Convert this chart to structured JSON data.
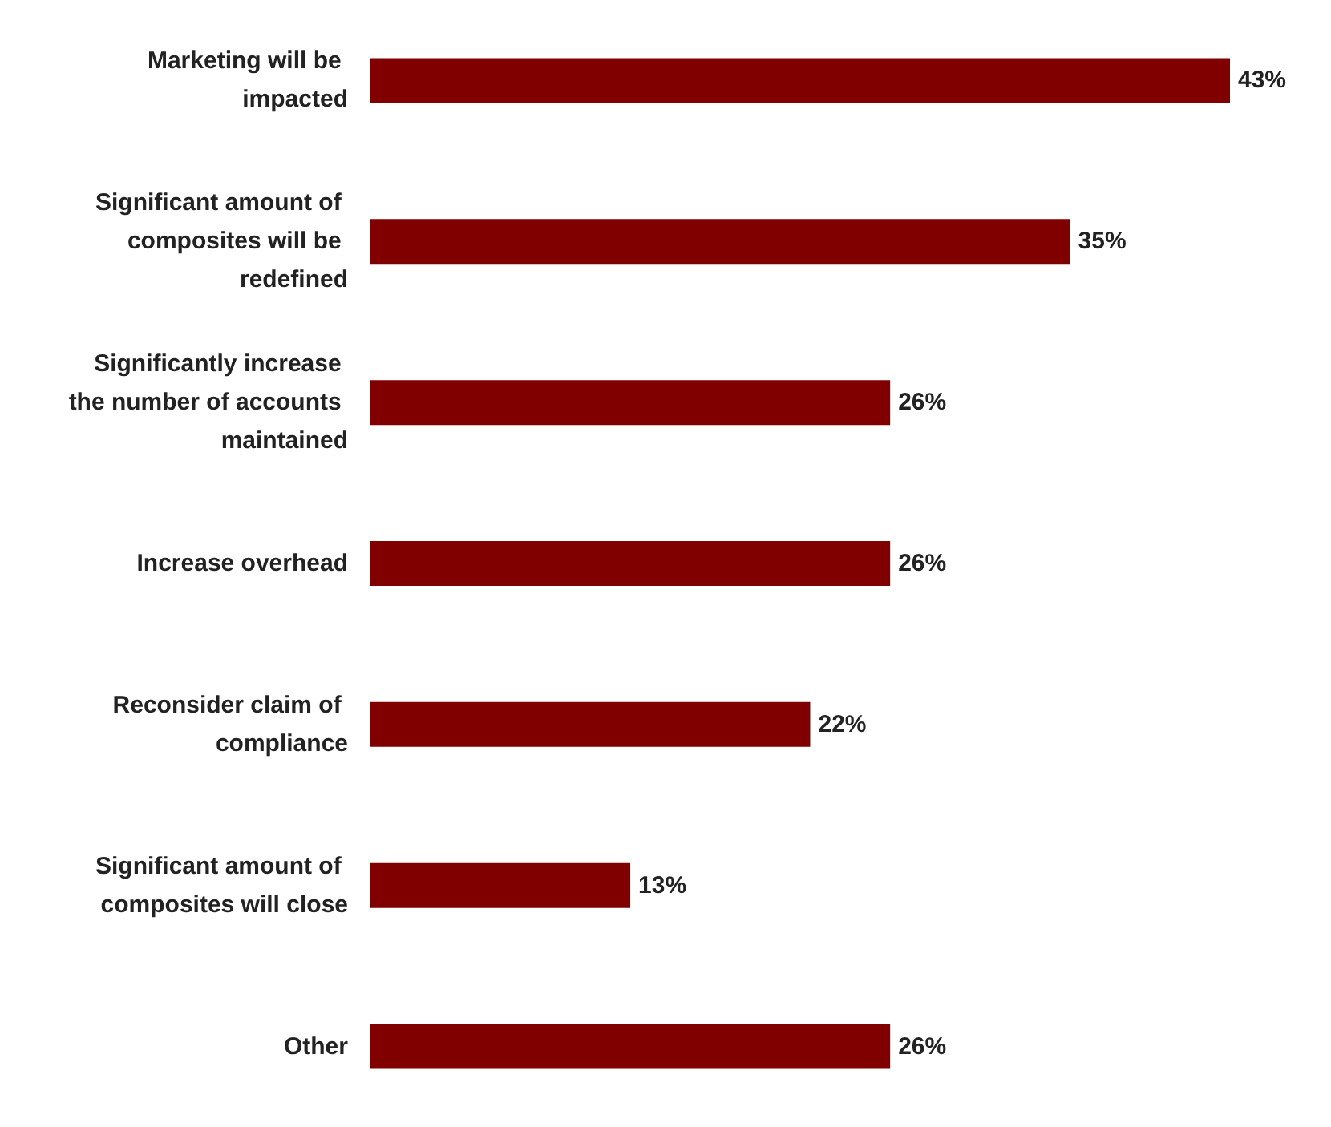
{
  "chart_data": {
    "type": "bar",
    "orientation": "horizontal",
    "categories": [
      "Marketing will be impacted",
      "Significant amount of composites will be redefined",
      "Significantly increase the number of accounts maintained",
      "Increase overhead",
      "Reconsider claim of compliance",
      "Significant amount of composites will close",
      "Other"
    ],
    "values": [
      43,
      35,
      26,
      26,
      22,
      13,
      26
    ],
    "value_labels": [
      "43%",
      "35%",
      "26%",
      "26%",
      "22%",
      "13%",
      "26%"
    ],
    "color": "#800000"
  }
}
